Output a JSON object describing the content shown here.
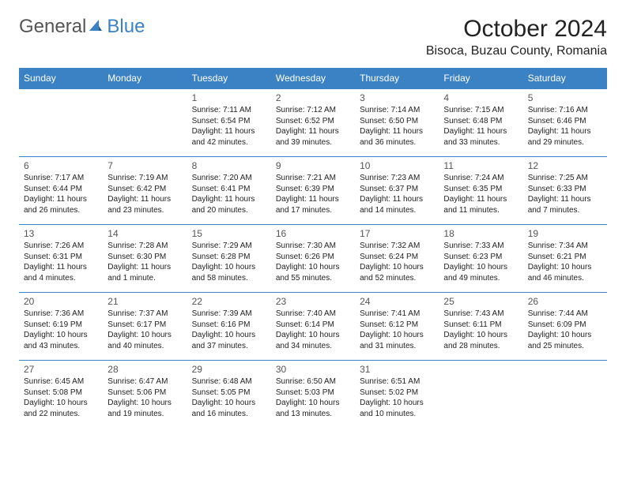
{
  "logo": {
    "part1": "General",
    "part2": "Blue"
  },
  "title": "October 2024",
  "location": "Bisoca, Buzau County, Romania",
  "dayHeaders": [
    "Sunday",
    "Monday",
    "Tuesday",
    "Wednesday",
    "Thursday",
    "Friday",
    "Saturday"
  ],
  "colors": {
    "headerBg": "#3b82c4",
    "headerText": "#ffffff",
    "rowBorder": "#3b82c4",
    "dayNumColor": "#555555",
    "textColor": "#222222",
    "background": "#ffffff"
  },
  "weeks": [
    [
      {
        "n": "",
        "sr": "",
        "ss": "",
        "dl": ""
      },
      {
        "n": "",
        "sr": "",
        "ss": "",
        "dl": ""
      },
      {
        "n": "1",
        "sr": "Sunrise: 7:11 AM",
        "ss": "Sunset: 6:54 PM",
        "dl": "Daylight: 11 hours and 42 minutes."
      },
      {
        "n": "2",
        "sr": "Sunrise: 7:12 AM",
        "ss": "Sunset: 6:52 PM",
        "dl": "Daylight: 11 hours and 39 minutes."
      },
      {
        "n": "3",
        "sr": "Sunrise: 7:14 AM",
        "ss": "Sunset: 6:50 PM",
        "dl": "Daylight: 11 hours and 36 minutes."
      },
      {
        "n": "4",
        "sr": "Sunrise: 7:15 AM",
        "ss": "Sunset: 6:48 PM",
        "dl": "Daylight: 11 hours and 33 minutes."
      },
      {
        "n": "5",
        "sr": "Sunrise: 7:16 AM",
        "ss": "Sunset: 6:46 PM",
        "dl": "Daylight: 11 hours and 29 minutes."
      }
    ],
    [
      {
        "n": "6",
        "sr": "Sunrise: 7:17 AM",
        "ss": "Sunset: 6:44 PM",
        "dl": "Daylight: 11 hours and 26 minutes."
      },
      {
        "n": "7",
        "sr": "Sunrise: 7:19 AM",
        "ss": "Sunset: 6:42 PM",
        "dl": "Daylight: 11 hours and 23 minutes."
      },
      {
        "n": "8",
        "sr": "Sunrise: 7:20 AM",
        "ss": "Sunset: 6:41 PM",
        "dl": "Daylight: 11 hours and 20 minutes."
      },
      {
        "n": "9",
        "sr": "Sunrise: 7:21 AM",
        "ss": "Sunset: 6:39 PM",
        "dl": "Daylight: 11 hours and 17 minutes."
      },
      {
        "n": "10",
        "sr": "Sunrise: 7:23 AM",
        "ss": "Sunset: 6:37 PM",
        "dl": "Daylight: 11 hours and 14 minutes."
      },
      {
        "n": "11",
        "sr": "Sunrise: 7:24 AM",
        "ss": "Sunset: 6:35 PM",
        "dl": "Daylight: 11 hours and 11 minutes."
      },
      {
        "n": "12",
        "sr": "Sunrise: 7:25 AM",
        "ss": "Sunset: 6:33 PM",
        "dl": "Daylight: 11 hours and 7 minutes."
      }
    ],
    [
      {
        "n": "13",
        "sr": "Sunrise: 7:26 AM",
        "ss": "Sunset: 6:31 PM",
        "dl": "Daylight: 11 hours and 4 minutes."
      },
      {
        "n": "14",
        "sr": "Sunrise: 7:28 AM",
        "ss": "Sunset: 6:30 PM",
        "dl": "Daylight: 11 hours and 1 minute."
      },
      {
        "n": "15",
        "sr": "Sunrise: 7:29 AM",
        "ss": "Sunset: 6:28 PM",
        "dl": "Daylight: 10 hours and 58 minutes."
      },
      {
        "n": "16",
        "sr": "Sunrise: 7:30 AM",
        "ss": "Sunset: 6:26 PM",
        "dl": "Daylight: 10 hours and 55 minutes."
      },
      {
        "n": "17",
        "sr": "Sunrise: 7:32 AM",
        "ss": "Sunset: 6:24 PM",
        "dl": "Daylight: 10 hours and 52 minutes."
      },
      {
        "n": "18",
        "sr": "Sunrise: 7:33 AM",
        "ss": "Sunset: 6:23 PM",
        "dl": "Daylight: 10 hours and 49 minutes."
      },
      {
        "n": "19",
        "sr": "Sunrise: 7:34 AM",
        "ss": "Sunset: 6:21 PM",
        "dl": "Daylight: 10 hours and 46 minutes."
      }
    ],
    [
      {
        "n": "20",
        "sr": "Sunrise: 7:36 AM",
        "ss": "Sunset: 6:19 PM",
        "dl": "Daylight: 10 hours and 43 minutes."
      },
      {
        "n": "21",
        "sr": "Sunrise: 7:37 AM",
        "ss": "Sunset: 6:17 PM",
        "dl": "Daylight: 10 hours and 40 minutes."
      },
      {
        "n": "22",
        "sr": "Sunrise: 7:39 AM",
        "ss": "Sunset: 6:16 PM",
        "dl": "Daylight: 10 hours and 37 minutes."
      },
      {
        "n": "23",
        "sr": "Sunrise: 7:40 AM",
        "ss": "Sunset: 6:14 PM",
        "dl": "Daylight: 10 hours and 34 minutes."
      },
      {
        "n": "24",
        "sr": "Sunrise: 7:41 AM",
        "ss": "Sunset: 6:12 PM",
        "dl": "Daylight: 10 hours and 31 minutes."
      },
      {
        "n": "25",
        "sr": "Sunrise: 7:43 AM",
        "ss": "Sunset: 6:11 PM",
        "dl": "Daylight: 10 hours and 28 minutes."
      },
      {
        "n": "26",
        "sr": "Sunrise: 7:44 AM",
        "ss": "Sunset: 6:09 PM",
        "dl": "Daylight: 10 hours and 25 minutes."
      }
    ],
    [
      {
        "n": "27",
        "sr": "Sunrise: 6:45 AM",
        "ss": "Sunset: 5:08 PM",
        "dl": "Daylight: 10 hours and 22 minutes."
      },
      {
        "n": "28",
        "sr": "Sunrise: 6:47 AM",
        "ss": "Sunset: 5:06 PM",
        "dl": "Daylight: 10 hours and 19 minutes."
      },
      {
        "n": "29",
        "sr": "Sunrise: 6:48 AM",
        "ss": "Sunset: 5:05 PM",
        "dl": "Daylight: 10 hours and 16 minutes."
      },
      {
        "n": "30",
        "sr": "Sunrise: 6:50 AM",
        "ss": "Sunset: 5:03 PM",
        "dl": "Daylight: 10 hours and 13 minutes."
      },
      {
        "n": "31",
        "sr": "Sunrise: 6:51 AM",
        "ss": "Sunset: 5:02 PM",
        "dl": "Daylight: 10 hours and 10 minutes."
      },
      {
        "n": "",
        "sr": "",
        "ss": "",
        "dl": ""
      },
      {
        "n": "",
        "sr": "",
        "ss": "",
        "dl": ""
      }
    ]
  ]
}
